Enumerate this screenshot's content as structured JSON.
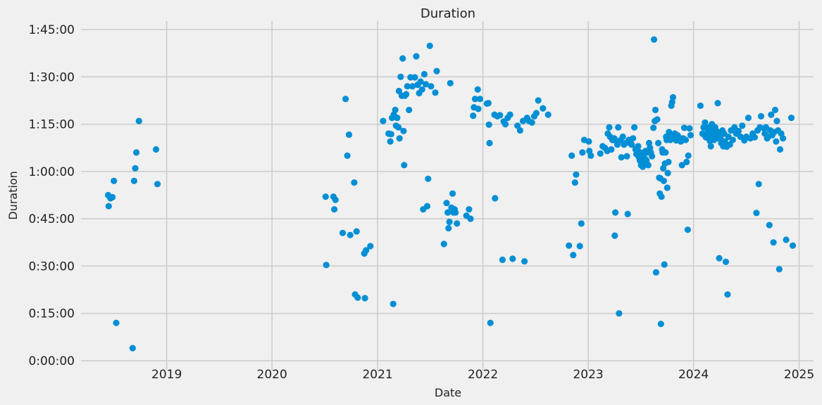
{
  "chart_data": {
    "type": "scatter",
    "title": "Duration",
    "xlabel": "Date",
    "ylabel": "Duration",
    "x_ticks": [
      "2019",
      "2020",
      "2021",
      "2022",
      "2023",
      "2024",
      "2025"
    ],
    "y_ticks": [
      "0:00:00",
      "0:15:00",
      "0:30:00",
      "0:45:00",
      "1:00:00",
      "1:15:00",
      "1:30:00",
      "1:45:00"
    ],
    "xlim": [
      "2018-03-10",
      "2025-02-20"
    ],
    "ylim": [
      "0:00:00",
      "1:45:00"
    ],
    "grid": true,
    "color": "#008fd5",
    "points": [
      [
        "2018-06-12",
        "0:52:30"
      ],
      [
        "2018-06-14",
        "0:49:00"
      ],
      [
        "2018-06-20",
        "0:51:30"
      ],
      [
        "2018-06-27",
        "0:51:50"
      ],
      [
        "2018-07-02",
        "0:57:00"
      ],
      [
        "2018-07-10",
        "0:12:00"
      ],
      [
        "2018-09-05",
        "0:04:00"
      ],
      [
        "2018-09-10",
        "0:57:00"
      ],
      [
        "2018-09-14",
        "1:01:00"
      ],
      [
        "2018-09-18",
        "1:06:00"
      ],
      [
        "2018-09-27",
        "1:16:00"
      ],
      [
        "2018-11-25",
        "1:07:00"
      ],
      [
        "2018-11-30",
        "0:56:00"
      ],
      [
        "2020-07-05",
        "0:52:00"
      ],
      [
        "2020-07-07",
        "0:30:20"
      ],
      [
        "2020-08-01",
        "0:52:00"
      ],
      [
        "2020-08-04",
        "0:48:00"
      ],
      [
        "2020-08-08",
        "0:51:00"
      ],
      [
        "2020-09-02",
        "0:40:30"
      ],
      [
        "2020-09-12",
        "1:23:00"
      ],
      [
        "2020-09-18",
        "1:05:00"
      ],
      [
        "2020-09-24",
        "1:11:40"
      ],
      [
        "2020-09-28",
        "0:39:50"
      ],
      [
        "2020-10-12",
        "0:56:30"
      ],
      [
        "2020-10-15",
        "0:21:00"
      ],
      [
        "2020-10-20",
        "0:41:00"
      ],
      [
        "2020-10-24",
        "0:20:00"
      ],
      [
        "2020-11-16",
        "0:34:00"
      ],
      [
        "2020-11-18",
        "0:19:50"
      ],
      [
        "2020-11-22",
        "0:35:00"
      ],
      [
        "2020-12-07",
        "0:36:20"
      ],
      [
        "2021-01-20",
        "1:16:00"
      ],
      [
        "2021-02-08",
        "1:12:00"
      ],
      [
        "2021-02-14",
        "1:09:30"
      ],
      [
        "2021-02-17",
        "1:11:50"
      ],
      [
        "2021-02-20",
        "1:17:00"
      ],
      [
        "2021-02-24",
        "0:18:00"
      ],
      [
        "2021-02-26",
        "1:18:00"
      ],
      [
        "2021-03-03",
        "1:19:30"
      ],
      [
        "2021-03-06",
        "1:14:30"
      ],
      [
        "2021-03-10",
        "1:17:00"
      ],
      [
        "2021-03-14",
        "1:14:00"
      ],
      [
        "2021-03-16",
        "1:25:30"
      ],
      [
        "2021-03-18",
        "1:10:30"
      ],
      [
        "2021-03-22",
        "1:30:00"
      ],
      [
        "2021-03-26",
        "1:24:00"
      ],
      [
        "2021-03-29",
        "1:35:50"
      ],
      [
        "2021-04-01",
        "1:12:50"
      ],
      [
        "2021-04-03",
        "1:02:00"
      ],
      [
        "2021-04-05",
        "1:24:00"
      ],
      [
        "2021-04-10",
        "1:24:30"
      ],
      [
        "2021-04-14",
        "1:27:00"
      ],
      [
        "2021-04-20",
        "1:19:30"
      ],
      [
        "2021-04-25",
        "1:29:50"
      ],
      [
        "2021-05-02",
        "1:27:00"
      ],
      [
        "2021-05-10",
        "1:29:50"
      ],
      [
        "2021-05-15",
        "1:36:30"
      ],
      [
        "2021-05-20",
        "1:27:30"
      ],
      [
        "2021-05-25",
        "1:24:50"
      ],
      [
        "2021-05-30",
        "1:28:30"
      ],
      [
        "2021-06-04",
        "1:26:00"
      ],
      [
        "2021-06-08",
        "0:48:00"
      ],
      [
        "2021-06-12",
        "1:30:50"
      ],
      [
        "2021-06-17",
        "1:27:40"
      ],
      [
        "2021-06-22",
        "0:49:00"
      ],
      [
        "2021-06-25",
        "0:57:40"
      ],
      [
        "2021-07-01",
        "1:39:50"
      ],
      [
        "2021-07-05",
        "1:27:00"
      ],
      [
        "2021-07-20",
        "1:25:00"
      ],
      [
        "2021-07-25",
        "1:31:50"
      ],
      [
        "2021-08-19",
        "0:37:00"
      ],
      [
        "2021-08-28",
        "0:50:00"
      ],
      [
        "2021-09-01",
        "0:47:00"
      ],
      [
        "2021-09-04",
        "0:42:00"
      ],
      [
        "2021-09-07",
        "0:44:00"
      ],
      [
        "2021-09-10",
        "1:28:00"
      ],
      [
        "2021-09-14",
        "0:48:30"
      ],
      [
        "2021-09-18",
        "0:53:00"
      ],
      [
        "2021-09-21",
        "0:47:00"
      ],
      [
        "2021-09-25",
        "0:48:00"
      ],
      [
        "2021-09-28",
        "0:47:00"
      ],
      [
        "2021-10-03",
        "0:43:30"
      ],
      [
        "2021-11-05",
        "0:46:00"
      ],
      [
        "2021-11-14",
        "0:48:00"
      ],
      [
        "2021-11-19",
        "0:45:00"
      ],
      [
        "2021-11-28",
        "1:17:40"
      ],
      [
        "2021-12-01",
        "1:20:20"
      ],
      [
        "2021-12-05",
        "1:23:00"
      ],
      [
        "2021-12-14",
        "1:26:00"
      ],
      [
        "2021-12-16",
        "1:19:50"
      ],
      [
        "2021-12-22",
        "1:23:00"
      ],
      [
        "2022-01-15",
        "1:21:30"
      ],
      [
        "2022-01-20",
        "1:21:40"
      ],
      [
        "2022-01-22",
        "1:14:50"
      ],
      [
        "2022-01-24",
        "1:09:00"
      ],
      [
        "2022-01-27",
        "0:12:00"
      ],
      [
        "2022-02-10",
        "1:18:00"
      ],
      [
        "2022-02-12",
        "0:51:30"
      ],
      [
        "2022-02-20",
        "1:17:30"
      ],
      [
        "2022-03-01",
        "1:17:50"
      ],
      [
        "2022-03-10",
        "0:32:00"
      ],
      [
        "2022-03-14",
        "1:15:50"
      ],
      [
        "2022-03-20",
        "1:15:00"
      ],
      [
        "2022-03-28",
        "1:17:00"
      ],
      [
        "2022-04-05",
        "1:18:00"
      ],
      [
        "2022-04-14",
        "0:32:20"
      ],
      [
        "2022-05-01",
        "1:14:30"
      ],
      [
        "2022-05-10",
        "1:13:00"
      ],
      [
        "2022-05-20",
        "1:16:00"
      ],
      [
        "2022-05-25",
        "0:31:30"
      ],
      [
        "2022-06-03",
        "1:17:00"
      ],
      [
        "2022-06-10",
        "1:16:00"
      ],
      [
        "2022-06-20",
        "1:15:30"
      ],
      [
        "2022-06-28",
        "1:17:30"
      ],
      [
        "2022-07-05",
        "1:18:30"
      ],
      [
        "2022-07-12",
        "1:22:30"
      ],
      [
        "2022-07-28",
        "1:20:00"
      ],
      [
        "2022-08-15",
        "1:18:00"
      ],
      [
        "2022-10-26",
        "0:36:30"
      ],
      [
        "2022-11-05",
        "1:05:00"
      ],
      [
        "2022-11-10",
        "0:33:30"
      ],
      [
        "2022-11-16",
        "0:56:30"
      ],
      [
        "2022-11-20",
        "0:59:00"
      ],
      [
        "2022-12-03",
        "0:36:20"
      ],
      [
        "2022-12-08",
        "0:43:30"
      ],
      [
        "2022-12-12",
        "1:06:00"
      ],
      [
        "2022-12-18",
        "1:10:00"
      ],
      [
        "2023-01-03",
        "1:09:30"
      ],
      [
        "2023-01-05",
        "1:06:30"
      ],
      [
        "2023-01-10",
        "1:05:00"
      ],
      [
        "2023-02-12",
        "1:05:40"
      ],
      [
        "2023-02-20",
        "1:08:00"
      ],
      [
        "2023-02-28",
        "1:07:30"
      ],
      [
        "2023-03-08",
        "1:06:30"
      ],
      [
        "2023-03-10",
        "1:12:00"
      ],
      [
        "2023-03-15",
        "1:14:00"
      ],
      [
        "2023-03-18",
        "1:11:00"
      ],
      [
        "2023-03-22",
        "1:07:00"
      ],
      [
        "2023-03-26",
        "1:10:00"
      ],
      [
        "2023-04-01",
        "1:10:30"
      ],
      [
        "2023-04-03",
        "0:39:40"
      ],
      [
        "2023-04-05",
        "0:47:00"
      ],
      [
        "2023-04-08",
        "1:09:40"
      ],
      [
        "2023-04-12",
        "1:08:30"
      ],
      [
        "2023-04-15",
        "1:14:00"
      ],
      [
        "2023-04-18",
        "0:15:00"
      ],
      [
        "2023-04-22",
        "1:09:50"
      ],
      [
        "2023-04-26",
        "1:04:30"
      ],
      [
        "2023-05-01",
        "1:11:00"
      ],
      [
        "2023-05-05",
        "1:08:30"
      ],
      [
        "2023-05-10",
        "1:09:00"
      ],
      [
        "2023-05-15",
        "1:04:50"
      ],
      [
        "2023-05-18",
        "0:46:30"
      ],
      [
        "2023-05-22",
        "1:10:00"
      ],
      [
        "2023-05-26",
        "1:09:00"
      ],
      [
        "2023-06-01",
        "1:08:30"
      ],
      [
        "2023-06-05",
        "1:10:30"
      ],
      [
        "2023-06-10",
        "1:14:00"
      ],
      [
        "2023-06-14",
        "1:07:00"
      ],
      [
        "2023-06-17",
        "1:05:30"
      ],
      [
        "2023-06-20",
        "1:06:50"
      ],
      [
        "2023-06-23",
        "1:08:00"
      ],
      [
        "2023-06-26",
        "1:04:30"
      ],
      [
        "2023-06-29",
        "1:03:30"
      ],
      [
        "2023-07-01",
        "1:06:00"
      ],
      [
        "2023-07-03",
        "1:02:00"
      ],
      [
        "2023-07-05",
        "1:05:00"
      ],
      [
        "2023-07-07",
        "1:04:00"
      ],
      [
        "2023-07-09",
        "1:01:30"
      ],
      [
        "2023-07-11",
        "1:03:00"
      ],
      [
        "2023-07-13",
        "1:05:40"
      ],
      [
        "2023-07-15",
        "1:02:50"
      ],
      [
        "2023-07-17",
        "1:04:00"
      ],
      [
        "2023-07-19",
        "1:06:30"
      ],
      [
        "2023-07-22",
        "1:03:30"
      ],
      [
        "2023-07-25",
        "1:06:00"
      ],
      [
        "2023-07-28",
        "1:02:00"
      ],
      [
        "2023-07-31",
        "1:09:00"
      ],
      [
        "2023-08-03",
        "1:07:30"
      ],
      [
        "2023-08-06",
        "1:06:00"
      ],
      [
        "2023-08-10",
        "1:04:50"
      ],
      [
        "2023-08-15",
        "1:13:50"
      ],
      [
        "2023-08-17",
        "1:41:50"
      ],
      [
        "2023-08-20",
        "1:16:00"
      ],
      [
        "2023-08-22",
        "1:19:30"
      ],
      [
        "2023-08-24",
        "0:28:00"
      ],
      [
        "2023-08-28",
        "1:16:30"
      ],
      [
        "2023-09-01",
        "1:09:00"
      ],
      [
        "2023-09-04",
        "0:58:00"
      ],
      [
        "2023-09-06",
        "0:53:00"
      ],
      [
        "2023-09-08",
        "0:57:50"
      ],
      [
        "2023-09-10",
        "0:11:40"
      ],
      [
        "2023-09-12",
        "0:52:00"
      ],
      [
        "2023-09-14",
        "1:07:00"
      ],
      [
        "2023-09-16",
        "1:06:00"
      ],
      [
        "2023-09-18",
        "1:01:00"
      ],
      [
        "2023-09-20",
        "0:57:00"
      ],
      [
        "2023-09-22",
        "0:30:30"
      ],
      [
        "2023-09-24",
        "1:02:30"
      ],
      [
        "2023-09-26",
        "1:06:00"
      ],
      [
        "2023-09-28",
        "1:11:00"
      ],
      [
        "2023-09-30",
        "1:10:00"
      ],
      [
        "2023-10-02",
        "0:54:50"
      ],
      [
        "2023-10-04",
        "0:59:30"
      ],
      [
        "2023-10-06",
        "1:03:00"
      ],
      [
        "2023-10-08",
        "1:12:30"
      ],
      [
        "2023-10-10",
        "1:11:40"
      ],
      [
        "2023-10-13",
        "1:10:00"
      ],
      [
        "2023-10-16",
        "1:20:50"
      ],
      [
        "2023-10-19",
        "1:22:00"
      ],
      [
        "2023-10-22",
        "1:23:30"
      ],
      [
        "2023-10-25",
        "1:10:30"
      ],
      [
        "2023-10-28",
        "1:12:00"
      ],
      [
        "2023-11-02",
        "1:09:50"
      ],
      [
        "2023-11-06",
        "1:11:30"
      ],
      [
        "2023-11-10",
        "1:11:00"
      ],
      [
        "2023-11-15",
        "1:10:00"
      ],
      [
        "2023-11-18",
        "1:09:30"
      ],
      [
        "2023-11-22",
        "1:02:00"
      ],
      [
        "2023-11-26",
        "1:10:30"
      ],
      [
        "2023-11-30",
        "1:13:50"
      ],
      [
        "2023-12-05",
        "1:10:00"
      ],
      [
        "2023-12-08",
        "1:03:00"
      ],
      [
        "2023-12-12",
        "0:41:30"
      ],
      [
        "2023-12-14",
        "1:05:00"
      ],
      [
        "2023-12-18",
        "1:13:40"
      ],
      [
        "2023-12-22",
        "1:11:30"
      ],
      [
        "2024-01-25",
        "1:20:50"
      ],
      [
        "2024-02-01",
        "1:12:00"
      ],
      [
        "2024-02-05",
        "1:14:00"
      ],
      [
        "2024-02-08",
        "1:11:30"
      ],
      [
        "2024-02-10",
        "1:15:30"
      ],
      [
        "2024-02-13",
        "1:10:50"
      ],
      [
        "2024-02-16",
        "1:13:50"
      ],
      [
        "2024-02-19",
        "1:12:30"
      ],
      [
        "2024-02-22",
        "1:10:30"
      ],
      [
        "2024-02-25",
        "1:14:00"
      ],
      [
        "2024-02-27",
        "1:09:40"
      ],
      [
        "2024-03-01",
        "1:08:00"
      ],
      [
        "2024-03-03",
        "1:11:00"
      ],
      [
        "2024-03-05",
        "1:15:00"
      ],
      [
        "2024-03-07",
        "1:12:00"
      ],
      [
        "2024-03-09",
        "1:13:30"
      ],
      [
        "2024-03-12",
        "1:10:00"
      ],
      [
        "2024-03-14",
        "1:12:00"
      ],
      [
        "2024-03-16",
        "1:14:00"
      ],
      [
        "2024-03-18",
        "1:11:30"
      ],
      [
        "2024-03-20",
        "1:12:50"
      ],
      [
        "2024-03-22",
        "1:10:30"
      ],
      [
        "2024-03-25",
        "1:21:40"
      ],
      [
        "2024-03-28",
        "1:12:00"
      ],
      [
        "2024-03-30",
        "0:32:30"
      ],
      [
        "2024-04-03",
        "1:10:30"
      ],
      [
        "2024-04-06",
        "1:09:00"
      ],
      [
        "2024-04-10",
        "1:13:00"
      ],
      [
        "2024-04-13",
        "1:08:00"
      ],
      [
        "2024-04-16",
        "1:12:00"
      ],
      [
        "2024-04-19",
        "1:09:30"
      ],
      [
        "2024-04-22",
        "0:31:20"
      ],
      [
        "2024-04-25",
        "1:07:50"
      ],
      [
        "2024-04-28",
        "0:21:00"
      ],
      [
        "2024-05-01",
        "1:11:00"
      ],
      [
        "2024-05-06",
        "1:08:30"
      ],
      [
        "2024-05-10",
        "1:13:00"
      ],
      [
        "2024-05-16",
        "1:10:00"
      ],
      [
        "2024-05-22",
        "1:14:00"
      ],
      [
        "2024-05-28",
        "1:12:00"
      ],
      [
        "2024-06-05",
        "1:12:50"
      ],
      [
        "2024-06-12",
        "1:11:00"
      ],
      [
        "2024-06-18",
        "1:14:30"
      ],
      [
        "2024-06-25",
        "1:09:50"
      ],
      [
        "2024-07-02",
        "1:11:00"
      ],
      [
        "2024-07-09",
        "1:17:00"
      ],
      [
        "2024-07-16",
        "1:10:30"
      ],
      [
        "2024-07-24",
        "1:12:00"
      ],
      [
        "2024-07-31",
        "1:10:50"
      ],
      [
        "2024-08-06",
        "0:46:50"
      ],
      [
        "2024-08-10",
        "1:13:00"
      ],
      [
        "2024-08-14",
        "0:56:00"
      ],
      [
        "2024-08-18",
        "1:14:00"
      ],
      [
        "2024-08-22",
        "1:17:30"
      ],
      [
        "2024-09-01",
        "1:13:40"
      ],
      [
        "2024-09-04",
        "1:12:00"
      ],
      [
        "2024-09-08",
        "1:14:00"
      ],
      [
        "2024-09-12",
        "1:10:30"
      ],
      [
        "2024-09-16",
        "1:11:00"
      ],
      [
        "2024-09-20",
        "0:43:00"
      ],
      [
        "2024-09-23",
        "1:13:00"
      ],
      [
        "2024-09-26",
        "1:18:00"
      ],
      [
        "2024-09-30",
        "1:11:30"
      ],
      [
        "2024-10-04",
        "0:37:30"
      ],
      [
        "2024-10-07",
        "1:12:30"
      ],
      [
        "2024-10-10",
        "1:19:30"
      ],
      [
        "2024-10-13",
        "1:09:30"
      ],
      [
        "2024-10-16",
        "1:16:00"
      ],
      [
        "2024-10-20",
        "1:13:00"
      ],
      [
        "2024-10-24",
        "0:29:00"
      ],
      [
        "2024-10-27",
        "1:07:00"
      ],
      [
        "2024-10-31",
        "1:12:00"
      ],
      [
        "2024-11-06",
        "1:10:30"
      ],
      [
        "2024-11-17",
        "0:38:20"
      ],
      [
        "2024-12-05",
        "1:17:00"
      ],
      [
        "2024-12-10",
        "0:36:30"
      ]
    ]
  }
}
